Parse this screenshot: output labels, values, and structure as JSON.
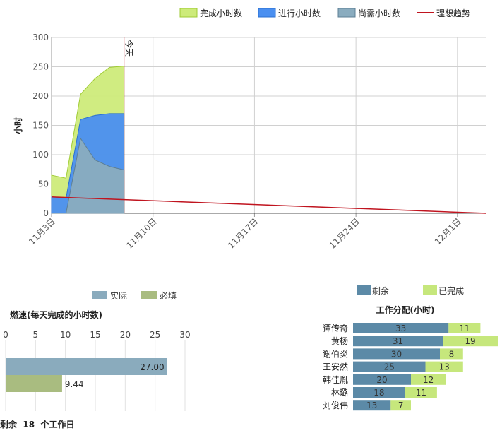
{
  "chart_data": [
    {
      "type": "area",
      "ylabel": "小时",
      "ylim": [
        0,
        300
      ],
      "yticks": [
        0,
        50,
        100,
        150,
        200,
        250,
        300
      ],
      "xticks": [
        "11月3日",
        "11月10日",
        "11月17日",
        "11月24日",
        "12月1日"
      ],
      "today_label": "今天",
      "legend_position": "top-right",
      "x": [
        0,
        1,
        2,
        3,
        4,
        5
      ],
      "series": [
        {
          "name": "完成小时数",
          "color": "#cdeb7a",
          "values": [
            65,
            60,
            203,
            230,
            249,
            251
          ]
        },
        {
          "name": "进行小时数",
          "color": "#4a8ff0",
          "values": [
            28,
            26,
            160,
            167,
            170,
            170
          ]
        },
        {
          "name": "尚需小时数",
          "color": "#8aacbf",
          "values": [
            0,
            0,
            128,
            91,
            80,
            74
          ]
        },
        {
          "name": "理想趋势",
          "color": "#c0141f",
          "type": "line",
          "points": [
            [
              0,
              28
            ],
            [
              30,
              0
            ]
          ]
        }
      ]
    },
    {
      "type": "bar",
      "title": "燃速(每天完成的小时数)",
      "orientation": "horizontal",
      "xlim": [
        0,
        30
      ],
      "xticks": [
        0,
        5,
        10,
        15,
        20,
        25,
        30
      ],
      "series": [
        {
          "name": "实际",
          "color": "#8aabbd",
          "value": 27.0,
          "label": "27.00"
        },
        {
          "name": "必填",
          "color": "#a9bc80",
          "value": 9.44,
          "label": "9.44"
        }
      ],
      "legend_position": "top"
    },
    {
      "type": "bar",
      "title": "工作分配(小时)",
      "orientation": "horizontal",
      "stacked": true,
      "categories": [
        "谭传奇",
        "黄杨",
        "谢伯炎",
        "王安然",
        "韩佳胤",
        "林璐",
        "刘俊伟"
      ],
      "series": [
        {
          "name": "剩余",
          "color": "#5c8aa7",
          "values": [
            33,
            31,
            30,
            25,
            20,
            18,
            13
          ]
        },
        {
          "name": "已完成",
          "color": "#c6e77c",
          "values": [
            11,
            19,
            8,
            13,
            12,
            11,
            7
          ]
        }
      ],
      "legend_position": "top"
    }
  ],
  "footer": {
    "prefix": "剩余",
    "days": "18",
    "suffix": "个工作日"
  }
}
